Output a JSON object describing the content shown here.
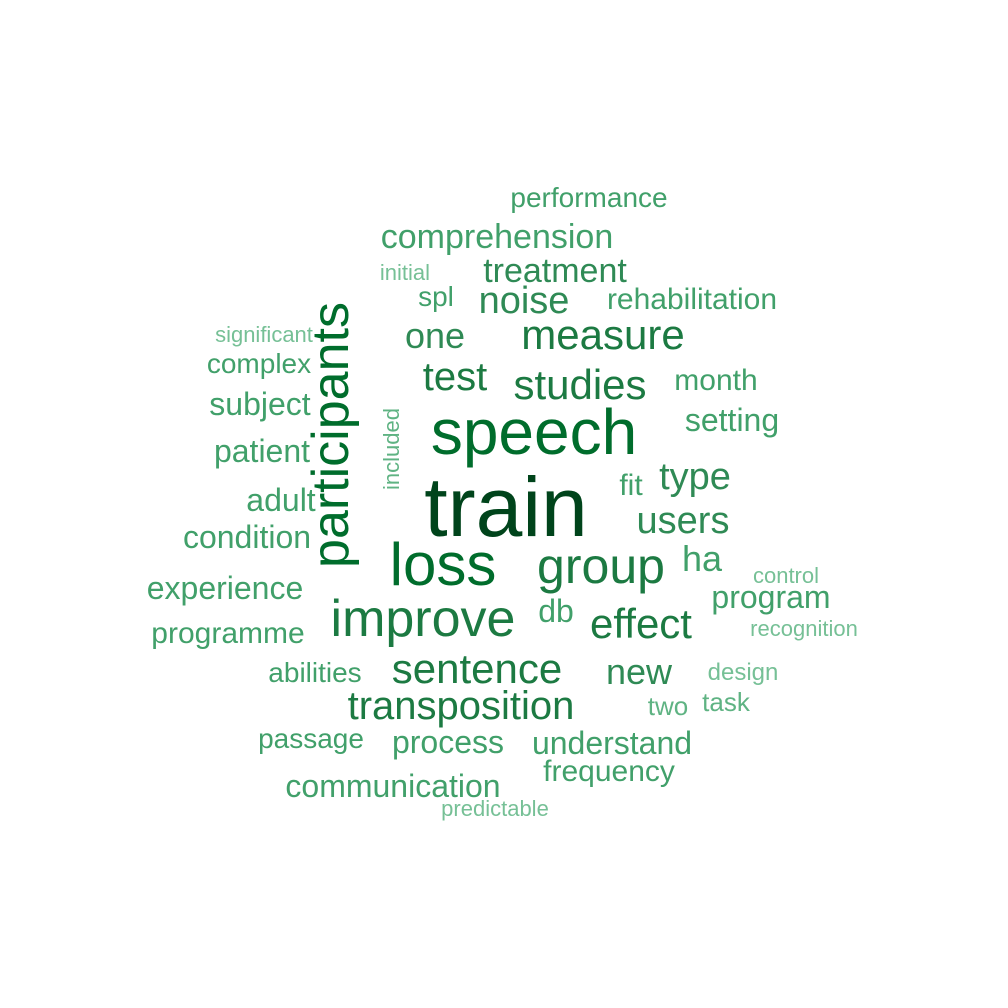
{
  "word_cloud": {
    "palette": {
      "darkest": "#00441b",
      "dark": "#006d2c",
      "mid_dark": "#1c7a42",
      "mid": "#2f8a55",
      "light": "#41a06a",
      "lighter": "#5fb383",
      "lightest": "#76c096"
    },
    "words": [
      {
        "text": "train",
        "tier": "darkest"
      },
      {
        "text": "speech",
        "tier": "dark"
      },
      {
        "text": "participants",
        "tier": "dark"
      },
      {
        "text": "loss",
        "tier": "dark"
      },
      {
        "text": "improve",
        "tier": "mid_dark"
      },
      {
        "text": "group",
        "tier": "mid_dark"
      },
      {
        "text": "measure",
        "tier": "mid_dark"
      },
      {
        "text": "studies",
        "tier": "mid_dark"
      },
      {
        "text": "sentence",
        "tier": "mid_dark"
      },
      {
        "text": "transposition",
        "tier": "mid_dark"
      },
      {
        "text": "effect",
        "tier": "mid_dark"
      },
      {
        "text": "test",
        "tier": "mid_dark"
      },
      {
        "text": "users",
        "tier": "mid"
      },
      {
        "text": "noise",
        "tier": "mid"
      },
      {
        "text": "one",
        "tier": "mid"
      },
      {
        "text": "type",
        "tier": "mid"
      },
      {
        "text": "new",
        "tier": "mid"
      },
      {
        "text": "treatment",
        "tier": "mid"
      },
      {
        "text": "ha",
        "tier": "light"
      },
      {
        "text": "comprehension",
        "tier": "light"
      },
      {
        "text": "setting",
        "tier": "light"
      },
      {
        "text": "process",
        "tier": "light"
      },
      {
        "text": "understand",
        "tier": "light"
      },
      {
        "text": "communication",
        "tier": "light"
      },
      {
        "text": "rehabilitation",
        "tier": "light"
      },
      {
        "text": "patient",
        "tier": "light"
      },
      {
        "text": "subject",
        "tier": "light"
      },
      {
        "text": "condition",
        "tier": "light"
      },
      {
        "text": "adult",
        "tier": "light"
      },
      {
        "text": "experience",
        "tier": "light"
      },
      {
        "text": "programme",
        "tier": "light"
      },
      {
        "text": "program",
        "tier": "light"
      },
      {
        "text": "db",
        "tier": "light"
      },
      {
        "text": "fit",
        "tier": "light"
      },
      {
        "text": "month",
        "tier": "light"
      },
      {
        "text": "frequency",
        "tier": "light"
      },
      {
        "text": "complex",
        "tier": "light"
      },
      {
        "text": "abilities",
        "tier": "light"
      },
      {
        "text": "passage",
        "tier": "light"
      },
      {
        "text": "performance",
        "tier": "light"
      },
      {
        "text": "spl",
        "tier": "light"
      },
      {
        "text": "two",
        "tier": "lighter"
      },
      {
        "text": "task",
        "tier": "lighter"
      },
      {
        "text": "included",
        "tier": "lighter"
      },
      {
        "text": "initial",
        "tier": "lightest"
      },
      {
        "text": "significant",
        "tier": "lightest"
      },
      {
        "text": "design",
        "tier": "lightest"
      },
      {
        "text": "control",
        "tier": "lightest"
      },
      {
        "text": "recognition",
        "tier": "lightest"
      },
      {
        "text": "predictable",
        "tier": "lightest"
      }
    ]
  }
}
